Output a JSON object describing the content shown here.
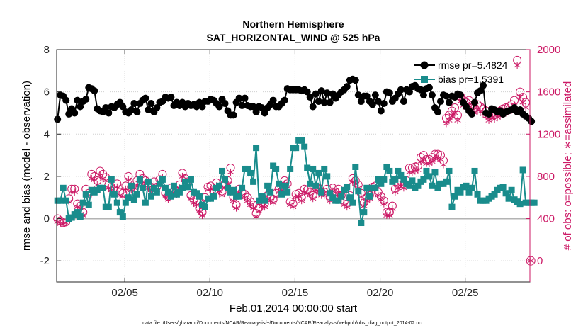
{
  "chart_data": {
    "type": "line",
    "title": "Northern Hemisphere",
    "subtitle": "SAT_HORIZONTAL_WIND @ 525 hPa",
    "xlabel": "Feb.01,2014 00:00:00 start",
    "ylabel_left": "rmse and bias (model - observation)",
    "ylabel_right": "# of obs: o=possible; ∗=assimilated",
    "footnote": "data file: /Users/gharamti/Documents/NCAR/Reanalysis/~/Documents/NCAR/Reanalysis/webpub/obs_diag_output_2014-02.nc",
    "x_range": [
      1.0,
      28.8
    ],
    "ylim_left": [
      -3,
      8
    ],
    "ylim_right": [
      -200,
      2000
    ],
    "yticks_left": [
      -2,
      0,
      2,
      4,
      6,
      8
    ],
    "yticks_left_labels": [
      "-2",
      "0",
      "2",
      "4",
      "6",
      "8"
    ],
    "yticks_right": [
      0,
      400,
      800,
      1200,
      1600,
      2000
    ],
    "yticks_right_labels": [
      "0",
      "400",
      "800",
      "1200",
      "1600",
      "2000"
    ],
    "xticks": [
      5,
      10,
      15,
      20,
      25
    ],
    "xtick_labels": [
      "02/05",
      "02/10",
      "02/15",
      "02/20",
      "02/25"
    ],
    "grid": true,
    "legend_position": "top-right",
    "colors": {
      "rmse": "#000000",
      "bias": "#198c8c",
      "obs": "#cc1a66",
      "zero": "#b3b3b3"
    },
    "extra_right_point": {
      "x": 28.85,
      "possible": 0,
      "assimilated": 0
    },
    "series": [
      {
        "name": "rmse",
        "legend": "rmse pr=5.4824",
        "values": [
          4.7,
          5.85,
          5.8,
          5.6,
          4.95,
          5.2,
          5.0,
          5.6,
          5.3,
          5.55,
          5.65,
          6.2,
          6.15,
          6.05,
          5.2,
          5.1,
          5.05,
          5.25,
          5.0,
          5.3,
          5.25,
          5.4,
          5.5,
          5.3,
          5.05,
          5.0,
          5.15,
          5.45,
          5.05,
          5.45,
          5.6,
          5.7,
          5.15,
          5.45,
          5.05,
          5.25,
          5.5,
          5.55,
          5.75,
          5.7,
          5.75,
          5.35,
          5.5,
          5.35,
          5.5,
          5.3,
          5.45,
          5.35,
          5.4,
          5.3,
          5.5,
          5.3,
          5.55,
          5.55,
          5.65,
          5.6,
          5.45,
          5.3,
          5.65,
          5.45,
          5.1,
          4.9,
          4.9,
          5.5,
          5.7,
          5.35,
          5.7,
          5.35,
          5.3,
          5.3,
          5.05,
          5.3,
          5.25,
          5.0,
          5.25,
          5.4,
          5.6,
          5.3,
          5.3,
          5.45,
          5.6,
          6.15,
          6.1,
          6.1,
          6.1,
          6.1,
          6.05,
          6.1,
          6.0,
          5.75,
          5.3,
          5.9,
          5.55,
          6.05,
          5.5,
          5.95,
          5.5,
          5.9,
          5.7,
          5.85,
          6.0,
          6.1,
          6.25,
          6.55,
          6.6,
          6.55,
          5.85,
          5.55,
          5.8,
          5.8,
          5.55,
          5.4,
          5.85,
          5.55,
          5.1,
          5.45,
          6.0,
          5.95,
          5.55,
          5.7,
          5.9,
          6.1,
          5.55,
          6.1,
          6.0,
          6.25,
          6.3,
          6.15,
          6.1,
          5.85,
          6.15,
          6.2,
          5.85,
          5.25,
          5.05,
          5.55,
          5.85,
          5.8,
          5.5,
          5.8,
          5.75,
          5.9,
          5.85,
          5.5,
          5.3,
          5.1,
          4.95,
          5.5,
          5.95,
          6.05,
          6.3,
          5.0,
          4.95,
          5.2,
          5.15,
          5.05,
          5.1,
          4.95,
          5.05,
          5.1,
          5.15,
          5.25,
          5.05,
          5.15,
          4.95,
          4.85,
          4.75,
          4.6
        ]
      },
      {
        "name": "bias",
        "legend": "bias pr=1.5391",
        "values": [
          0.85,
          0.85,
          1.45,
          0.85,
          0.0,
          0.05,
          0.2,
          0.3,
          0.1,
          0.75,
          1.15,
          0.65,
          1.35,
          1.25,
          1.35,
          1.45,
          1.45,
          0.55,
          0.55,
          1.85,
          1.15,
          0.75,
          0.3,
          0.1,
          0.75,
          1.0,
          1.55,
          0.9,
          1.15,
          1.85,
          1.45,
          0.75,
          1.75,
          1.05,
          1.45,
          1.25,
          1.65,
          1.85,
          1.45,
          1.25,
          1.05,
          1.55,
          1.15,
          1.25,
          1.45,
          1.75,
          1.5,
          1.85,
          1.25,
          1.2,
          1.05,
          0.65,
          0.55,
          0.95,
          0.95,
          1.05,
          1.45,
          1.55,
          2.25,
          1.85,
          1.45,
          1.25,
          1.35,
          1.05,
          1.05,
          1.45,
          2.35,
          2.35,
          2.15,
          1.75,
          3.35,
          0.85,
          1.05,
          0.85,
          1.55,
          1.25,
          2.5,
          2.35,
          1.65,
          1.15,
          1.55,
          1.25,
          2.35,
          3.35,
          3.35,
          3.7,
          3.7,
          3.4,
          2.4,
          1.65,
          2.35,
          1.55,
          2.15,
          1.25,
          2.35,
          2.0,
          1.2,
          1.0,
          0.85,
          0.85,
          1.05,
          1.35,
          1.5,
          1.0,
          0.75,
          2.45,
          1.3,
          -0.2,
          0.3,
          1.45,
          1.05,
          1.45,
          1.45,
          1.85,
          1.65,
          1.85,
          2.45,
          2.25,
          1.75,
          1.85,
          2.25,
          2.05,
          1.85,
          1.65,
          1.55,
          1.8,
          1.45,
          1.55,
          1.75,
          1.85,
          2.25,
          2.0,
          1.55,
          2.2,
          1.45,
          1.65,
          1.65,
          1.75,
          2.25,
          0.55,
          1.05,
          1.35,
          1.25,
          1.5,
          1.55,
          1.25,
          1.45,
          2.25,
          1.15,
          0.85,
          0.85,
          0.85,
          0.95,
          1.05,
          1.15,
          1.35,
          1.45,
          1.5,
          1.2,
          0.95,
          1.35,
          0.9,
          0.8,
          0.7,
          2.3,
          0.75,
          0.75,
          0.75,
          0.75
        ]
      },
      {
        "name": "possible",
        "axis": "right",
        "marker": "circle",
        "values": [
          400,
          380,
          360,
          370,
          590,
          680,
          680,
          540,
          520,
          460,
          680,
          640,
          820,
          800,
          760,
          850,
          820,
          790,
          720,
          700,
          660,
          730,
          650,
          640,
          710,
          800,
          700,
          720,
          760,
          820,
          780,
          760,
          720,
          700,
          750,
          700,
          770,
          820,
          640,
          610,
          690,
          650,
          660,
          720,
          830,
          780,
          750,
          620,
          580,
          560,
          500,
          460,
          600,
          700,
          710,
          650,
          740,
          690,
          650,
          730,
          760,
          880,
          600,
          530,
          680,
          650,
          630,
          600,
          560,
          530,
          450,
          500,
          550,
          540,
          620,
          600,
          580,
          640,
          680,
          700,
          760,
          730,
          560,
          540,
          630,
          640,
          600,
          680,
          670,
          650,
          620,
          700,
          690,
          650,
          650,
          680,
          600,
          690,
          650,
          680,
          620,
          560,
          540,
          620,
          780,
          760,
          720,
          640,
          550,
          600,
          620,
          700,
          710,
          650,
          610,
          570,
          460,
          460,
          520,
          680,
          720,
          750,
          720,
          760,
          880,
          880,
          890,
          900,
          980,
          1000,
          960,
          960,
          980,
          1010,
          1010,
          1000,
          950,
          1350,
          1380,
          1420,
          1450,
          1380,
          1560,
          1520,
          1500,
          1520,
          1470,
          1450,
          1480,
          1460,
          1440,
          1420,
          1380,
          1400,
          1390,
          1410,
          1420,
          1440,
          1450,
          1460,
          1480,
          1520,
          1900,
          1600,
          1550,
          1500
        ]
      },
      {
        "name": "assimilated",
        "axis": "right",
        "marker": "asterisk",
        "values": [
          370,
          350,
          350,
          360,
          560,
          650,
          650,
          510,
          500,
          430,
          640,
          620,
          780,
          770,
          720,
          810,
          780,
          760,
          690,
          670,
          640,
          700,
          620,
          610,
          680,
          770,
          670,
          690,
          720,
          790,
          750,
          730,
          690,
          670,
          720,
          670,
          740,
          790,
          610,
          580,
          660,
          620,
          630,
          690,
          800,
          750,
          720,
          590,
          550,
          530,
          470,
          430,
          570,
          670,
          680,
          620,
          710,
          660,
          620,
          700,
          730,
          840,
          570,
          500,
          650,
          620,
          600,
          570,
          530,
          500,
          420,
          470,
          520,
          510,
          590,
          570,
          550,
          610,
          650,
          670,
          730,
          700,
          530,
          510,
          600,
          610,
          570,
          650,
          640,
          620,
          590,
          670,
          660,
          620,
          620,
          650,
          570,
          660,
          620,
          650,
          590,
          530,
          510,
          590,
          750,
          730,
          690,
          610,
          520,
          570,
          590,
          670,
          680,
          620,
          580,
          540,
          430,
          430,
          490,
          650,
          690,
          720,
          690,
          730,
          840,
          840,
          850,
          860,
          940,
          960,
          920,
          920,
          940,
          970,
          970,
          960,
          910,
          1300,
          1330,
          1370,
          1400,
          1330,
          1510,
          1470,
          1450,
          1470,
          1420,
          1400,
          1430,
          1410,
          1390,
          1370,
          1330,
          1350,
          1340,
          1360,
          1370,
          1390,
          1400,
          1410,
          1430,
          1470,
          1850,
          1550,
          1500,
          1450
        ]
      }
    ]
  }
}
